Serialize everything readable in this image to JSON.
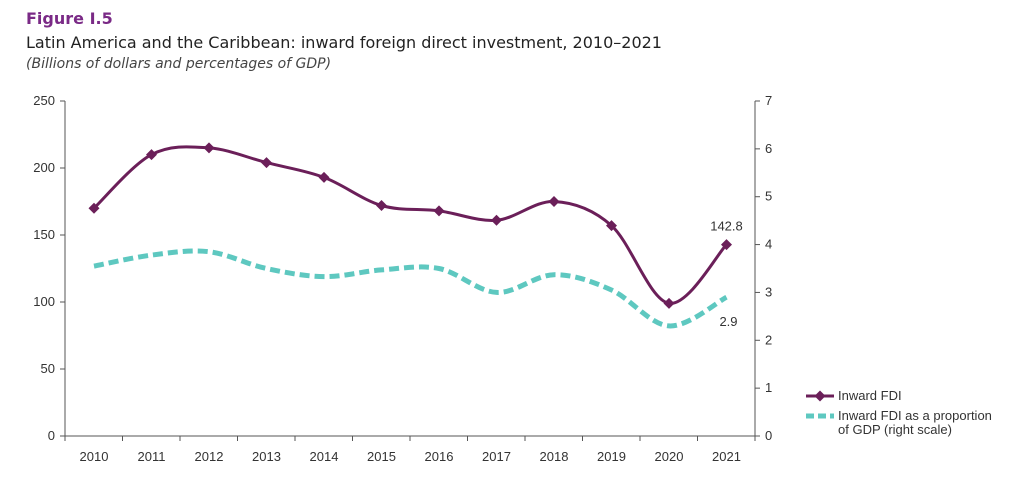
{
  "figure_label": "Figure I.5",
  "title": "Latin America and the Caribbean: inward foreign direct investment, 2010–2021",
  "subtitle": "(Billions of dollars and percentages of GDP)",
  "colors": {
    "fdi": "#6b1f59",
    "gdp": "#5ec8c0",
    "axis": "#555555"
  },
  "chart_data": {
    "type": "line",
    "categories": [
      "2010",
      "2011",
      "2012",
      "2013",
      "2014",
      "2015",
      "2016",
      "2017",
      "2018",
      "2019",
      "2020",
      "2021"
    ],
    "series": [
      {
        "name": "Inward FDI",
        "axis": "left",
        "values": [
          170,
          210,
          215,
          204,
          193,
          172,
          168,
          161,
          175,
          157,
          99,
          142.8
        ]
      },
      {
        "name": "Inward FDI as a proportion of GDP (right scale)",
        "axis": "right",
        "values": [
          3.55,
          3.78,
          3.85,
          3.5,
          3.33,
          3.47,
          3.5,
          3.0,
          3.37,
          3.05,
          2.3,
          2.9
        ]
      }
    ],
    "ylim_left": [
      0,
      250
    ],
    "yticks_left": [
      "0",
      "50",
      "100",
      "150",
      "200",
      "250"
    ],
    "ylim_right": [
      0,
      7
    ],
    "yticks_right": [
      "0",
      "1",
      "2",
      "3",
      "4",
      "5",
      "6",
      "7"
    ],
    "annotations": [
      "142.8",
      "2.9"
    ],
    "grid": false,
    "legend_position": "bottom-right"
  }
}
